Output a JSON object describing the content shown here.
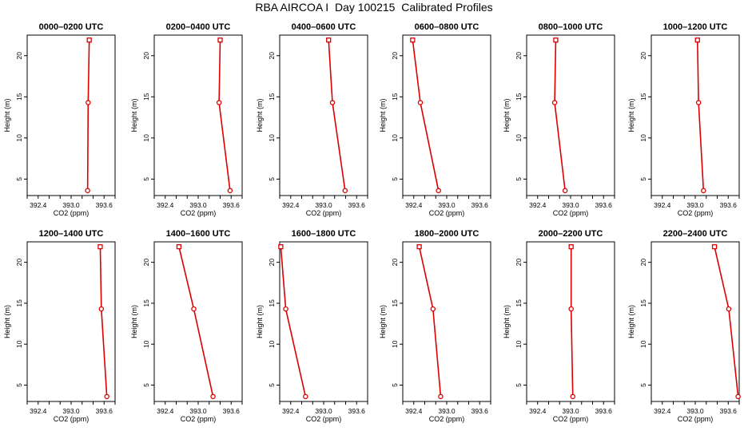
{
  "title": "RBA AIRCOA I  Day 100215  Calibrated Profiles",
  "colors": {
    "series": "#dd0000",
    "axis": "#000000",
    "background": "#ffffff"
  },
  "chart_data": [
    {
      "type": "line",
      "title": "0000–0200 UTC",
      "xlabel": "CO2 (ppm)",
      "ylabel": "Height (m)",
      "xlim": [
        392.2,
        393.8
      ],
      "ylim": [
        3,
        22.5
      ],
      "xticks": [
        "392.4",
        "393.0",
        "393.6"
      ],
      "yticks": [
        "5",
        "10",
        "15",
        "20"
      ],
      "x": [
        393.33,
        393.31,
        393.3
      ],
      "y": [
        21.9,
        14.3,
        3.6
      ]
    },
    {
      "type": "line",
      "title": "0200–0400 UTC",
      "xlabel": "CO2 (ppm)",
      "ylabel": "Height (m)",
      "xlim": [
        392.2,
        393.8
      ],
      "ylim": [
        3,
        22.5
      ],
      "xticks": [
        "392.4",
        "393.0",
        "393.6"
      ],
      "yticks": [
        "5",
        "10",
        "15",
        "20"
      ],
      "x": [
        393.4,
        393.38,
        393.58
      ],
      "y": [
        21.9,
        14.3,
        3.6
      ]
    },
    {
      "type": "line",
      "title": "0400–0600 UTC",
      "xlabel": "CO2 (ppm)",
      "ylabel": "Height (m)",
      "xlim": [
        392.2,
        393.8
      ],
      "ylim": [
        3,
        22.5
      ],
      "xticks": [
        "392.4",
        "393.0",
        "393.6"
      ],
      "yticks": [
        "5",
        "10",
        "15",
        "20"
      ],
      "x": [
        393.09,
        393.16,
        393.39
      ],
      "y": [
        21.9,
        14.3,
        3.6
      ]
    },
    {
      "type": "line",
      "title": "0600–0800 UTC",
      "xlabel": "CO2 (ppm)",
      "ylabel": "Height (m)",
      "xlim": [
        392.2,
        393.8
      ],
      "ylim": [
        3,
        22.5
      ],
      "xticks": [
        "392.4",
        "393.0",
        "393.6"
      ],
      "yticks": [
        "5",
        "10",
        "15",
        "20"
      ],
      "x": [
        392.38,
        392.52,
        392.85
      ],
      "y": [
        21.9,
        14.3,
        3.6
      ]
    },
    {
      "type": "line",
      "title": "0800–1000 UTC",
      "xlabel": "CO2 (ppm)",
      "ylabel": "Height (m)",
      "xlim": [
        392.2,
        393.8
      ],
      "ylim": [
        3,
        22.5
      ],
      "xticks": [
        "392.4",
        "393.0",
        "393.6"
      ],
      "yticks": [
        "5",
        "10",
        "15",
        "20"
      ],
      "x": [
        392.73,
        392.71,
        392.9
      ],
      "y": [
        21.9,
        14.3,
        3.6
      ]
    },
    {
      "type": "line",
      "title": "1000–1200 UTC",
      "xlabel": "CO2 (ppm)",
      "ylabel": "Height (m)",
      "xlim": [
        392.2,
        393.8
      ],
      "ylim": [
        3,
        22.5
      ],
      "xticks": [
        "392.4",
        "393.0",
        "393.6"
      ],
      "yticks": [
        "5",
        "10",
        "15",
        "20"
      ],
      "x": [
        393.04,
        393.06,
        393.15
      ],
      "y": [
        21.9,
        14.3,
        3.6
      ]
    },
    {
      "type": "line",
      "title": "1200–1400 UTC",
      "xlabel": "CO2 (ppm)",
      "ylabel": "Height (m)",
      "xlim": [
        392.2,
        393.8
      ],
      "ylim": [
        3,
        22.5
      ],
      "xticks": [
        "392.4",
        "393.0",
        "393.6"
      ],
      "yticks": [
        "5",
        "10",
        "15",
        "20"
      ],
      "x": [
        393.53,
        393.55,
        393.65
      ],
      "y": [
        21.9,
        14.3,
        3.6
      ]
    },
    {
      "type": "line",
      "title": "1400–1600 UTC",
      "xlabel": "CO2 (ppm)",
      "ylabel": "Height (m)",
      "xlim": [
        392.2,
        393.8
      ],
      "ylim": [
        3,
        22.5
      ],
      "xticks": [
        "392.4",
        "393.0",
        "393.6"
      ],
      "yticks": [
        "5",
        "10",
        "15",
        "20"
      ],
      "x": [
        392.65,
        392.92,
        393.27
      ],
      "y": [
        21.9,
        14.3,
        3.6
      ]
    },
    {
      "type": "line",
      "title": "1600–1800 UTC",
      "xlabel": "CO2 (ppm)",
      "ylabel": "Height (m)",
      "xlim": [
        392.2,
        393.8
      ],
      "ylim": [
        3,
        22.5
      ],
      "xticks": [
        "392.4",
        "393.0",
        "393.6"
      ],
      "yticks": [
        "5",
        "10",
        "15",
        "20"
      ],
      "x": [
        392.22,
        392.31,
        392.67
      ],
      "y": [
        21.9,
        14.3,
        3.6
      ]
    },
    {
      "type": "line",
      "title": "1800–2000 UTC",
      "xlabel": "CO2 (ppm)",
      "ylabel": "Height (m)",
      "xlim": [
        392.2,
        393.8
      ],
      "ylim": [
        3,
        22.5
      ],
      "xticks": [
        "392.4",
        "393.0",
        "393.6"
      ],
      "yticks": [
        "5",
        "10",
        "15",
        "20"
      ],
      "x": [
        392.5,
        392.75,
        392.89
      ],
      "y": [
        21.9,
        14.3,
        3.6
      ]
    },
    {
      "type": "line",
      "title": "2000–2200 UTC",
      "xlabel": "CO2 (ppm)",
      "ylabel": "Height (m)",
      "xlim": [
        392.2,
        393.8
      ],
      "ylim": [
        3,
        22.5
      ],
      "xticks": [
        "392.4",
        "393.0",
        "393.6"
      ],
      "yticks": [
        "5",
        "10",
        "15",
        "20"
      ],
      "x": [
        393.01,
        393.01,
        393.04
      ],
      "y": [
        21.9,
        14.3,
        3.6
      ]
    },
    {
      "type": "line",
      "title": "2200–2400 UTC",
      "xlabel": "CO2 (ppm)",
      "ylabel": "Height (m)",
      "xlim": [
        392.2,
        393.8
      ],
      "ylim": [
        3,
        22.5
      ],
      "xticks": [
        "392.4",
        "393.0",
        "393.6"
      ],
      "yticks": [
        "5",
        "10",
        "15",
        "20"
      ],
      "x": [
        393.35,
        393.61,
        393.78
      ],
      "y": [
        21.9,
        14.3,
        3.6
      ]
    }
  ]
}
